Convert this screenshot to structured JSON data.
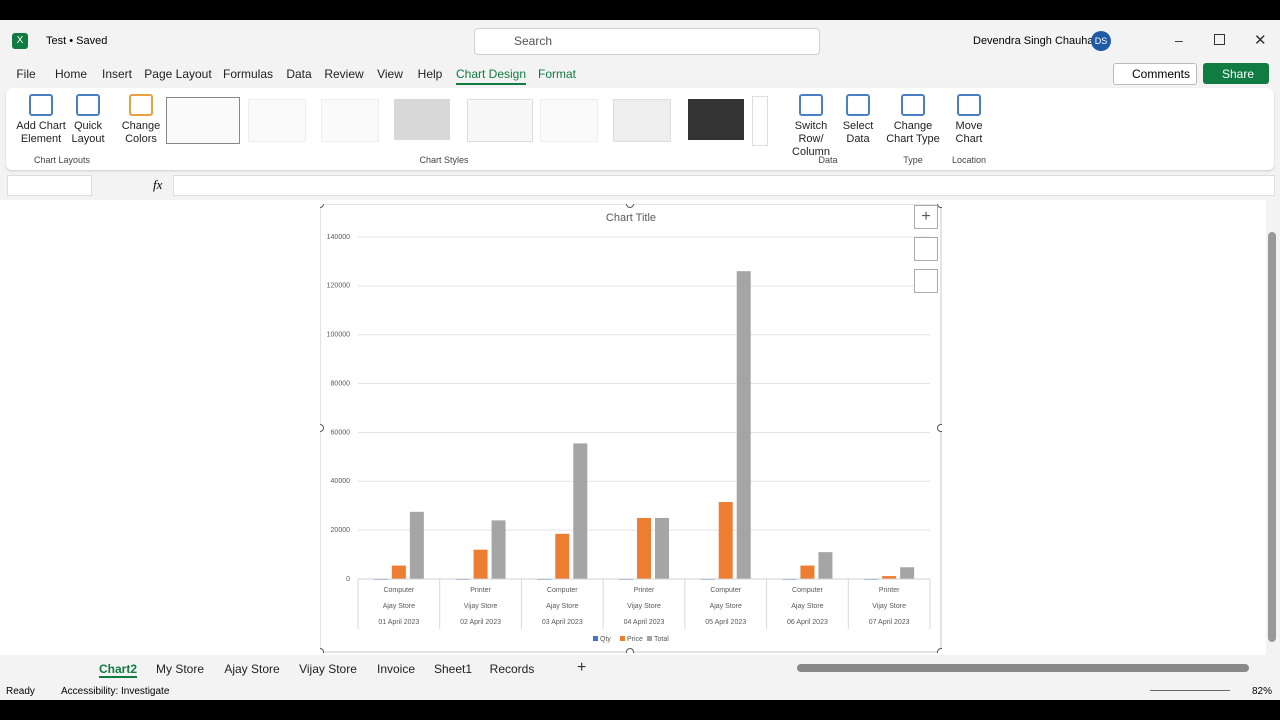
{
  "window": {
    "file_name": "Test • Saved",
    "search": "Search",
    "user": "Devendra Singh Chauhan",
    "initials": "DS"
  },
  "menu": [
    "File",
    "Home",
    "Insert",
    "Page Layout",
    "Formulas",
    "Data",
    "Review",
    "View",
    "Help",
    "Chart Design",
    "Format"
  ],
  "active_menu": 9,
  "actions": {
    "comments": "Comments",
    "share": "Share"
  },
  "ribbon_buttons": [
    "Add Chart Element",
    "Quick Layout",
    "Change Colors",
    "Switch Row/ Column",
    "Select Data",
    "Change Chart Type",
    "Move Chart"
  ],
  "ribbon_groups": [
    "Chart Layouts",
    "Chart Styles",
    "Data",
    "Type",
    "Location"
  ],
  "formula_bar": {
    "fx": "fx"
  },
  "chart_data": {
    "type": "bar",
    "title": "Chart Title",
    "categories": [
      "Computer",
      "Printer",
      "Computer",
      "Printer",
      "Computer",
      "Computer",
      "Printer"
    ],
    "stores": [
      "Ajay Store",
      "Vijay Store",
      "Ajay Store",
      "Vijay Store",
      "Ajay Store",
      "Ajay Store",
      "Vijay Store"
    ],
    "dates": [
      "01 April 2023",
      "02 April 2023",
      "03 April 2023",
      "04 April 2023",
      "05 April 2023",
      "06 April 2023",
      "07 April 2023"
    ],
    "series": [
      {
        "name": "Qty",
        "color": "#4472c4",
        "values": [
          5,
          2,
          3,
          1,
          4,
          2,
          4
        ]
      },
      {
        "name": "Price",
        "color": "#ed7d31",
        "values": [
          5500,
          12000,
          18500,
          25000,
          31500,
          5500,
          1200
        ]
      },
      {
        "name": "Total",
        "color": "#a5a5a5",
        "values": [
          27500,
          24000,
          55500,
          25000,
          126000,
          11000,
          4800
        ]
      }
    ],
    "ylim": [
      0,
      140000
    ],
    "yticks": [
      0,
      20000,
      40000,
      60000,
      80000,
      100000,
      120000,
      140000
    ],
    "grid": true,
    "legend": "bottom"
  },
  "sheet_tabs": [
    "Chart2",
    "My Store",
    "Ajay Store",
    "Vijay Store",
    "Invoice",
    "Sheet1",
    "Records"
  ],
  "active_sheet": 0,
  "status": {
    "ready": "Ready",
    "accessibility": "Accessibility: Investigate",
    "zoom": "82%"
  }
}
